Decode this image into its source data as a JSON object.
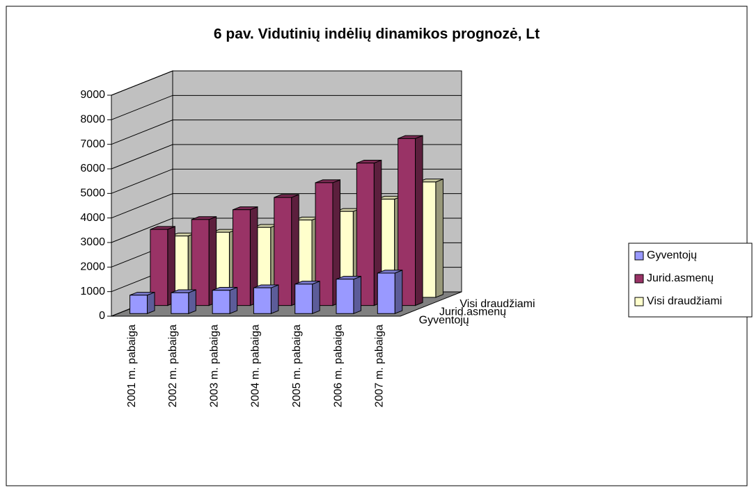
{
  "chart_data": {
    "type": "bar3d",
    "title": "6 pav. Vidutinių indėlių dinamikos prognozė, Lt",
    "categories": [
      "2001 m. pabaiga",
      "2002 m. pabaiga",
      "2003 m. pabaiga",
      "2004 m. pabaiga",
      "2005 m. pabaiga",
      "2006 m. pabaiga",
      "2007 m. pabaiga"
    ],
    "series": [
      {
        "name": "Gyventojų",
        "color": "#9999ff",
        "values": [
          750,
          850,
          950,
          1050,
          1200,
          1400,
          1650
        ]
      },
      {
        "name": "Jurid.asmenų",
        "color": "#993366",
        "values": [
          3100,
          3500,
          3900,
          4400,
          5000,
          5800,
          6800
        ]
      },
      {
        "name": "Visi draudžiami",
        "color": "#ffffcc",
        "values": [
          2500,
          2650,
          2850,
          3150,
          3500,
          4000,
          4700
        ]
      }
    ],
    "ylim": [
      0,
      9000
    ],
    "yticks": [
      0,
      1000,
      2000,
      3000,
      4000,
      5000,
      6000,
      7000,
      8000,
      9000
    ],
    "grid": true,
    "legend": "right"
  }
}
